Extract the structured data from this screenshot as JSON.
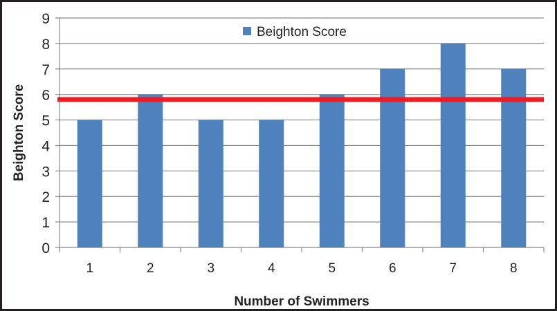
{
  "chart_data": {
    "type": "bar",
    "title": "",
    "xlabel": "Number of Swimmers",
    "ylabel": "Beighton Score",
    "categories": [
      "1",
      "2",
      "3",
      "4",
      "5",
      "6",
      "7",
      "8"
    ],
    "series": [
      {
        "name": "Beighton Score",
        "values": [
          5,
          6,
          5,
          5,
          6,
          7,
          8,
          7
        ],
        "color": "#4f81bd"
      }
    ],
    "reference_line": {
      "value": 5.8,
      "color": "#ed1c24"
    },
    "ylim": [
      0,
      9
    ],
    "yticks": [
      0,
      1,
      2,
      3,
      4,
      5,
      6,
      7,
      8,
      9
    ],
    "grid": true,
    "legend_position": "top-center"
  }
}
